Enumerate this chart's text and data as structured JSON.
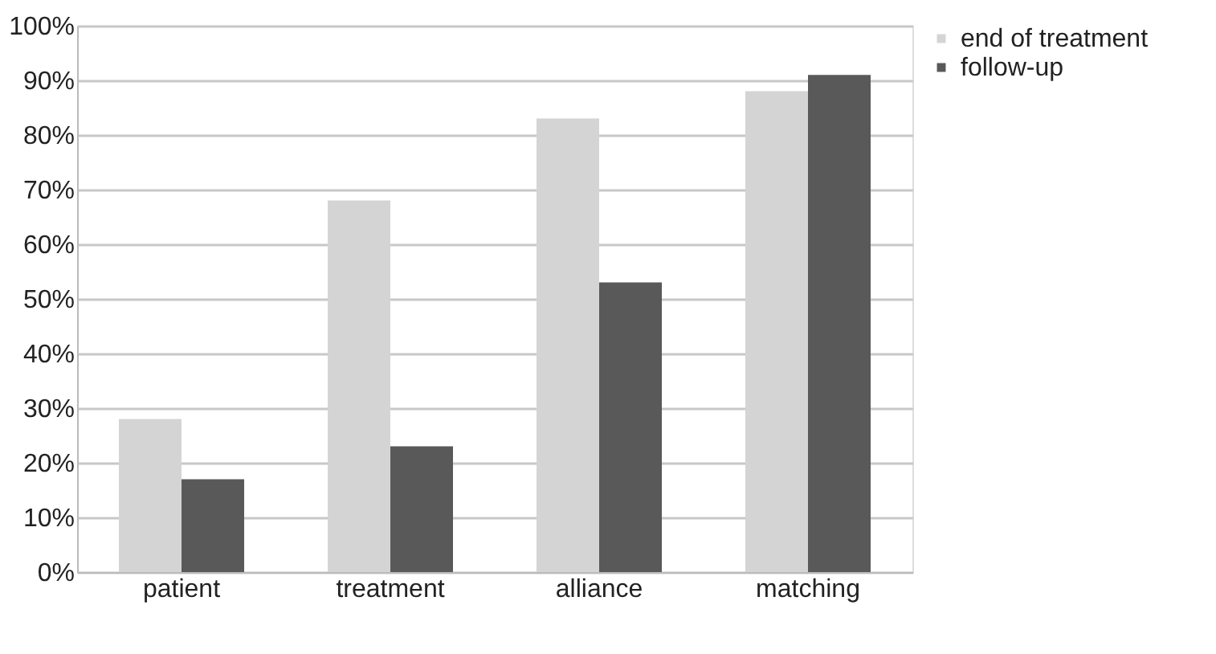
{
  "chart_data": {
    "type": "bar",
    "categories": [
      "patient",
      "treatment",
      "alliance",
      "matching"
    ],
    "series": [
      {
        "name": "end of treatment",
        "color": "#d4d4d4",
        "values": [
          28,
          68,
          83,
          88
        ]
      },
      {
        "name": "follow-up",
        "color": "#595959",
        "values": [
          17,
          23,
          53,
          91
        ]
      }
    ],
    "ylim": [
      0,
      100
    ],
    "yticks": [
      {
        "value": 0,
        "label": "0%"
      },
      {
        "value": 10,
        "label": "10%"
      },
      {
        "value": 20,
        "label": "20%"
      },
      {
        "value": 30,
        "label": "30%"
      },
      {
        "value": 40,
        "label": "40%"
      },
      {
        "value": 50,
        "label": "50%"
      },
      {
        "value": 60,
        "label": "60%"
      },
      {
        "value": 70,
        "label": "70%"
      },
      {
        "value": 80,
        "label": "80%"
      },
      {
        "value": 90,
        "label": "90%"
      },
      {
        "value": 100,
        "label": "100%"
      }
    ],
    "grid": "y",
    "legend": "right"
  }
}
